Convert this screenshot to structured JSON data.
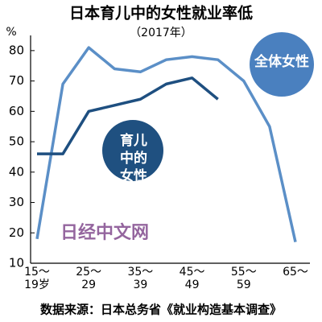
{
  "title": "日本育儿中的女性就业率低",
  "subtitle": "（2017年）",
  "watermark": "日经中文网",
  "source": "数据来源：日本总务省《就业构造基本调查》",
  "chart_data": {
    "type": "line",
    "y_unit": "%",
    "categories": [
      "15～19岁",
      null,
      "25～29",
      null,
      "35～39",
      null,
      "45～49",
      null,
      "55～59",
      null,
      "65～"
    ],
    "series": [
      {
        "name": "全体女性",
        "color": "#5b8fc7",
        "values": [
          18,
          69,
          81,
          74,
          73,
          77,
          78,
          77,
          70,
          55,
          17
        ]
      },
      {
        "name": "育儿中的女性",
        "color": "#1e4f80",
        "values": [
          46,
          46,
          60,
          62,
          64,
          69,
          71,
          64,
          null,
          null,
          null
        ]
      }
    ],
    "ylim": [
      10,
      85
    ],
    "yticks": [
      10,
      20,
      30,
      40,
      50,
      60,
      70,
      80
    ]
  }
}
